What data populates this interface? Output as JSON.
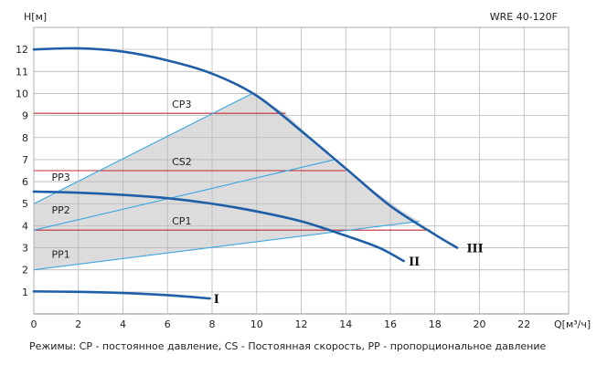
{
  "chart_data": {
    "type": "line",
    "title": "WRE 40-120F",
    "ylabel": "H[м]",
    "xlabel": "Q[м³/ч]",
    "xlim": [
      0,
      24
    ],
    "ylim": [
      0,
      13
    ],
    "x_ticks": [
      0,
      2,
      4,
      6,
      8,
      10,
      12,
      14,
      16,
      18,
      20,
      22
    ],
    "y_ticks": [
      1,
      2,
      3,
      4,
      5,
      6,
      7,
      8,
      9,
      10,
      11,
      12
    ],
    "grid": true,
    "pump_curves": [
      {
        "name": "III",
        "points": [
          [
            0,
            12.0
          ],
          [
            2,
            12.05
          ],
          [
            4,
            11.9
          ],
          [
            6,
            11.5
          ],
          [
            8,
            10.9
          ],
          [
            10,
            9.9
          ],
          [
            12,
            8.3
          ],
          [
            14,
            6.6
          ],
          [
            16,
            4.9
          ],
          [
            18,
            3.6
          ],
          [
            19,
            3.0
          ]
        ]
      },
      {
        "name": "II",
        "points": [
          [
            0,
            5.55
          ],
          [
            2,
            5.5
          ],
          [
            4,
            5.4
          ],
          [
            6,
            5.25
          ],
          [
            8,
            5.0
          ],
          [
            10,
            4.65
          ],
          [
            12,
            4.2
          ],
          [
            14,
            3.55
          ],
          [
            15.5,
            3.0
          ],
          [
            16.6,
            2.4
          ]
        ]
      },
      {
        "name": "I",
        "points": [
          [
            0,
            1.02
          ],
          [
            2,
            1.0
          ],
          [
            4,
            0.95
          ],
          [
            6,
            0.85
          ],
          [
            7.9,
            0.7
          ]
        ]
      }
    ],
    "cp_lines": [
      {
        "name": "CP3",
        "h": 9.1,
        "x_end": 11.3
      },
      {
        "name": "CS2",
        "h": 6.5,
        "x_end": 14.0
      },
      {
        "name": "CP1",
        "h": 3.8,
        "x_end": 17.8
      }
    ],
    "pp_lines": [
      {
        "name": "PP3",
        "points": [
          [
            0,
            5.0
          ],
          [
            9.8,
            10.0
          ]
        ]
      },
      {
        "name": "PP2",
        "points": [
          [
            0,
            3.8
          ],
          [
            13.5,
            7.0
          ]
        ]
      },
      {
        "name": "PP1",
        "points": [
          [
            0,
            2.0
          ],
          [
            17.3,
            4.2
          ]
        ]
      }
    ],
    "region": [
      [
        0,
        2.0
      ],
      [
        0,
        5.0
      ],
      [
        9.8,
        10.0
      ],
      [
        11.3,
        9.1
      ],
      [
        14.0,
        6.5
      ],
      [
        16.5,
        4.7
      ],
      [
        17.3,
        4.2
      ]
    ],
    "labels": {
      "CP3": [
        6.2,
        9.35
      ],
      "CS2": [
        6.2,
        6.75
      ],
      "CP1": [
        6.2,
        4.05
      ],
      "PP3": [
        0.8,
        6.05
      ],
      "PP2": [
        0.8,
        4.55
      ],
      "PP1": [
        0.8,
        2.55
      ]
    },
    "curve_labels": {
      "III": [
        19.3,
        3.0
      ],
      "II": [
        16.7,
        2.4
      ],
      "I": [
        7.95,
        0.7
      ]
    }
  },
  "colors": {
    "pump": "#1f5fa8",
    "cp": "#c0292f",
    "pp": "#3aa6e0",
    "region": "#dcdcdc",
    "grid": "#b9b9b9"
  },
  "footer_text": "Режимы: CP - постоянное давление, CS - Постоянная скорость, PP - пропорциональное давление"
}
